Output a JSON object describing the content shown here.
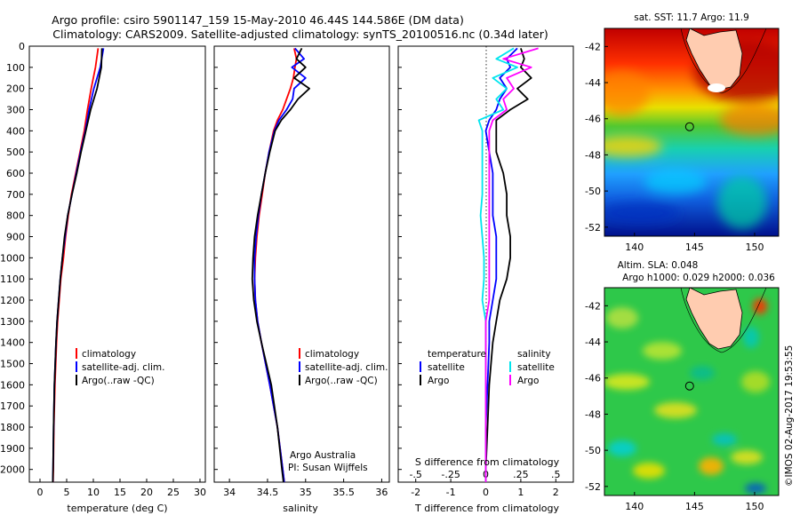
{
  "header": {
    "title_line1": "Argo profile: csiro 5901147_159 15-May-2010 46.44S 144.586E (DM data)",
    "title_line2": "Climatology: CARS2009. Satellite-adjusted climatology: synTS_20100516.nc (0.34d later)"
  },
  "colors": {
    "climatology": "#ff0000",
    "satellite": "#0000ff",
    "argo": "#000000",
    "salinity_satellite": "#00e5ee",
    "salinity_argo": "#ff00ff"
  },
  "chart_data": [
    {
      "type": "line",
      "name": "temperature-profile",
      "xlabel": "temperature (deg C)",
      "ylabel": "",
      "xlim": [
        -2,
        31
      ],
      "ylim": [
        2060,
        0
      ],
      "xticks": [
        0,
        5,
        10,
        15,
        20,
        25,
        30
      ],
      "yticks": [
        0,
        100,
        200,
        300,
        400,
        500,
        600,
        700,
        800,
        900,
        1000,
        1100,
        1200,
        1300,
        1400,
        1500,
        1600,
        1700,
        1800,
        1900,
        2000
      ],
      "depth": [
        10,
        100,
        200,
        300,
        400,
        500,
        600,
        700,
        800,
        900,
        1000,
        1100,
        1200,
        1300,
        1400,
        1600,
        1800,
        2000,
        2060
      ],
      "legend": [
        "climatology",
        "satellite-adj. clim.",
        "Argo(..raw -QC)"
      ],
      "series": [
        {
          "name": "climatology",
          "color": "#ff0000",
          "values": [
            10.9,
            10.4,
            9.6,
            8.9,
            8.3,
            7.5,
            6.7,
            5.9,
            5.3,
            4.8,
            4.4,
            3.9,
            3.6,
            3.3,
            3.1,
            2.8,
            2.6,
            2.5,
            2.45
          ]
        },
        {
          "name": "satellite-adj. clim.",
          "color": "#0000ff",
          "values": [
            11.9,
            11.3,
            10.1,
            9.2,
            8.5,
            7.6,
            6.8,
            6.0,
            5.2,
            4.7,
            4.2,
            3.8,
            3.5,
            3.2,
            3.0,
            2.7,
            2.55,
            2.45,
            2.4
          ]
        },
        {
          "name": "Argo(..raw -QC)",
          "color": "#000000",
          "values": [
            11.6,
            11.5,
            10.7,
            9.5,
            8.6,
            7.7,
            6.9,
            6.0,
            5.2,
            4.6,
            4.2,
            3.8,
            3.5,
            3.2,
            3.0,
            2.7,
            2.55,
            2.45,
            2.4
          ]
        }
      ]
    },
    {
      "type": "line",
      "name": "salinity-profile",
      "xlabel": "salinity",
      "xlim": [
        33.8,
        36.1
      ],
      "ylim": [
        2060,
        0
      ],
      "xticks": [
        34,
        34.5,
        35,
        35.5,
        36
      ],
      "depth": [
        10,
        60,
        100,
        150,
        200,
        250,
        300,
        350,
        400,
        500,
        600,
        700,
        800,
        900,
        1000,
        1100,
        1200,
        1300,
        1400,
        1600,
        1800,
        2000,
        2060
      ],
      "legend": [
        "climatology",
        "satellite-adj. clim.",
        "Argo(..raw -QC)"
      ],
      "series": [
        {
          "name": "climatology",
          "color": "#ff0000",
          "values": [
            34.85,
            34.88,
            34.86,
            34.84,
            34.8,
            34.75,
            34.7,
            34.63,
            34.58,
            34.52,
            34.47,
            34.43,
            34.39,
            34.36,
            34.34,
            34.33,
            34.34,
            34.37,
            34.42,
            34.53,
            34.63,
            34.7,
            34.72
          ]
        },
        {
          "name": "satellite-adj. clim.",
          "color": "#0000ff",
          "values": [
            34.86,
            34.98,
            34.82,
            35.0,
            34.85,
            34.83,
            34.75,
            34.65,
            34.59,
            34.52,
            34.47,
            34.42,
            34.38,
            34.35,
            34.33,
            34.33,
            34.34,
            34.37,
            34.42,
            34.53,
            34.63,
            34.7,
            34.72
          ]
        },
        {
          "name": "Argo(..raw -QC)",
          "color": "#000000",
          "values": [
            34.95,
            34.88,
            35.0,
            34.85,
            35.05,
            34.9,
            34.8,
            34.68,
            34.6,
            34.53,
            34.47,
            34.42,
            34.37,
            34.33,
            34.31,
            34.3,
            34.32,
            34.36,
            34.42,
            34.55,
            34.63,
            34.69,
            34.71
          ]
        }
      ]
    },
    {
      "type": "line",
      "name": "difference-profile",
      "xlabel_top": "S difference from climatology",
      "xlabel": "T difference from climatology",
      "xlim": [
        -2.5,
        2.5
      ],
      "ylim": [
        2060,
        0
      ],
      "xticks": [
        -2,
        -1,
        0,
        1,
        2
      ],
      "xticks_top": [
        -0.5,
        -0.25,
        0,
        0.25,
        0.5
      ],
      "depth": [
        10,
        60,
        100,
        150,
        200,
        250,
        300,
        350,
        400,
        500,
        600,
        700,
        800,
        900,
        1000,
        1100,
        1200,
        1300,
        1400,
        1600,
        1800,
        2000,
        2060
      ],
      "legend_temperature_heading": "temperature",
      "legend_salinity_heading": "salinity",
      "legend_temperature": [
        "satellite",
        "Argo"
      ],
      "legend_salinity": [
        "satellite",
        "Argo"
      ],
      "series": [
        {
          "name": "satellite",
          "group": "temperature",
          "color": "#0000ff",
          "values": [
            0.9,
            0.6,
            0.7,
            0.4,
            0.6,
            0.4,
            0.3,
            0.1,
            0.0,
            0.1,
            0.2,
            0.2,
            0.2,
            0.3,
            0.3,
            0.3,
            0.2,
            0.1,
            0.1,
            0.05,
            0.0,
            0.0,
            0.0
          ]
        },
        {
          "name": "Argo",
          "group": "temperature",
          "color": "#000000",
          "values": [
            1.0,
            1.1,
            1.0,
            1.3,
            0.9,
            1.2,
            0.7,
            0.3,
            0.3,
            0.3,
            0.5,
            0.6,
            0.6,
            0.7,
            0.7,
            0.6,
            0.4,
            0.3,
            0.2,
            0.1,
            0.05,
            0.0,
            0.0
          ]
        },
        {
          "name": "satellite",
          "group": "salinity",
          "color": "#00e5ee",
          "values": [
            0.8,
            0.3,
            0.9,
            0.2,
            0.6,
            0.3,
            0.5,
            -0.2,
            -0.1,
            -0.1,
            -0.1,
            -0.1,
            -0.15,
            -0.1,
            -0.05,
            -0.05,
            -0.1,
            0.0,
            0.0,
            0.0,
            0.0,
            0.0,
            0.0
          ]
        },
        {
          "name": "Argo",
          "group": "salinity",
          "color": "#ff00ff",
          "values": [
            1.5,
            0.5,
            1.3,
            0.6,
            0.8,
            0.5,
            0.6,
            0.2,
            0.1,
            0.1,
            0.1,
            0.1,
            0.1,
            0.1,
            0.1,
            0.1,
            0.1,
            0.0,
            0.0,
            0.0,
            0.0,
            0.0,
            0.0
          ]
        }
      ]
    },
    {
      "type": "heatmap",
      "name": "sst-map",
      "title": "sat. SST: 11.7 Argo: 11.9",
      "xlim": [
        137.5,
        152
      ],
      "ylim": [
        -52.5,
        -41
      ],
      "xticks": [
        140,
        145,
        150
      ],
      "yticks": [
        -42,
        -44,
        -46,
        -48,
        -50,
        -52
      ],
      "marker": {
        "lon": 144.586,
        "lat": -46.44
      }
    },
    {
      "type": "heatmap",
      "name": "sla-map",
      "title_line1": "Altim. SLA: 0.048",
      "title_line2": "Argo h1000: 0.029 h2000: 0.036",
      "xlim": [
        137.5,
        152
      ],
      "ylim": [
        -52.5,
        -41
      ],
      "xticks": [
        140,
        145,
        150
      ],
      "yticks": [
        -42,
        -44,
        -46,
        -48,
        -50,
        -52
      ],
      "marker": {
        "lon": 144.586,
        "lat": -46.44
      }
    }
  ],
  "footer": {
    "credit": "Argo Australia",
    "pi": "PI: Susan Wijffels",
    "watermark": "©IMOS 02-Aug-2017 19:53:55"
  }
}
